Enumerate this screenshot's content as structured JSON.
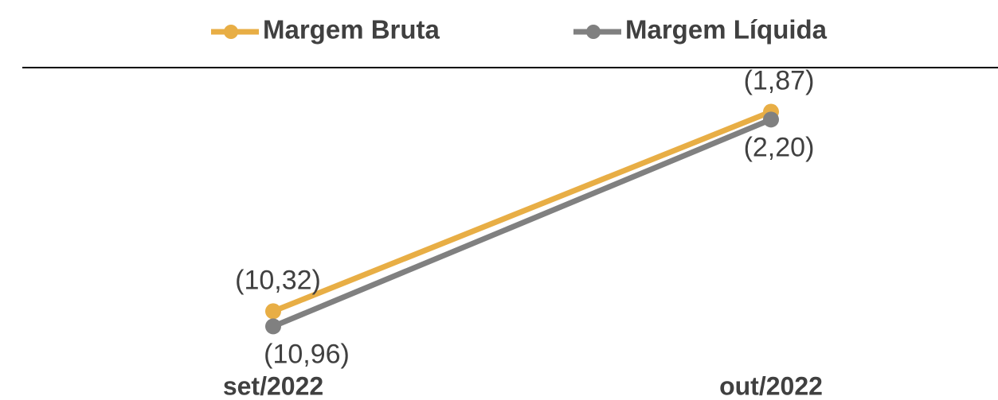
{
  "chart_data": {
    "type": "line",
    "categories": [
      "set/2022",
      "out/2022"
    ],
    "series": [
      {
        "name": "Margem Bruta",
        "color": "#e8ae45",
        "values": [
          -10.32,
          -1.87
        ],
        "value_labels": [
          "(10,32)",
          "(1,87)"
        ]
      },
      {
        "name": "Margem Líquida",
        "color": "#808080",
        "values": [
          -10.96,
          -2.2
        ],
        "value_labels": [
          "(10,96)",
          "(2,20)"
        ]
      }
    ],
    "ylim": [
      -13,
      0
    ]
  }
}
